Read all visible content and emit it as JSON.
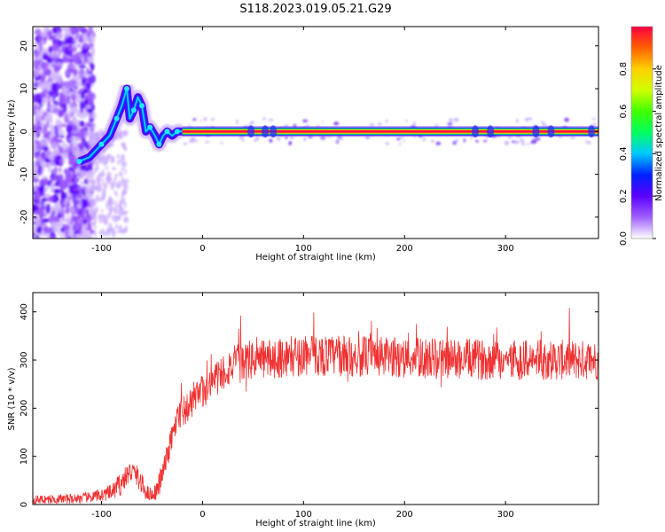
{
  "title": "S118.2023.019.05.21.G29",
  "chart_data": [
    {
      "type": "heatmap",
      "xlabel": "Height of straight line (km)",
      "ylabel": "Frequency (Hz)",
      "xlim": [
        -168,
        392
      ],
      "ylim": [
        -25,
        24.5
      ],
      "xticks": [
        -100,
        0,
        100,
        200,
        300
      ],
      "yticks": [
        -20,
        -10,
        0,
        10,
        20
      ],
      "ridge": {
        "x": [
          -122,
          -112,
          -100,
          -92,
          -85,
          -80,
          -75,
          -72,
          -68,
          -64,
          -60,
          -56,
          -52,
          -47,
          -43,
          -39,
          -35,
          -30,
          -25,
          -20
        ],
        "y": [
          -7,
          -6,
          -3,
          -1,
          3,
          6,
          10,
          3,
          5,
          8,
          6,
          0,
          1,
          -1,
          -3,
          -1,
          0,
          -1,
          0,
          0
        ]
      },
      "line_x_start": -20,
      "line_y": 0,
      "colorbar": {
        "label": "Normalized spectral amplitude",
        "ticks": [
          "0.0",
          "0.2",
          "0.4",
          "0.6",
          "0.8"
        ],
        "colors": [
          "#ffffff",
          "#a060ff",
          "#5b00ff",
          "#0020ff",
          "#00c8ff",
          "#00ff60",
          "#40ff00",
          "#d0ff00",
          "#ffd000",
          "#ff6000",
          "#ff0040"
        ]
      }
    },
    {
      "type": "line",
      "xlabel": "Height of straight line (km)",
      "ylabel": "SNR (10 * v/v)",
      "xlim": [
        -168,
        392
      ],
      "ylim": [
        0,
        440
      ],
      "xticks": [
        -100,
        0,
        100,
        200,
        300
      ],
      "yticks": [
        0,
        100,
        200,
        300,
        400
      ],
      "color": "#f03030",
      "profile": {
        "x": [
          -168,
          -130,
          -110,
          -90,
          -80,
          -75,
          -70,
          -65,
          -60,
          -55,
          -50,
          -45,
          -40,
          -35,
          -30,
          -25,
          -20,
          -15,
          -10,
          -5,
          0,
          5,
          10,
          20,
          30,
          50,
          100,
          200,
          300,
          392
        ],
        "y": [
          10,
          12,
          15,
          25,
          45,
          60,
          70,
          60,
          40,
          25,
          20,
          30,
          60,
          100,
          140,
          170,
          190,
          200,
          210,
          220,
          235,
          245,
          255,
          275,
          290,
          300,
          310,
          305,
          300,
          300
        ]
      }
    }
  ]
}
